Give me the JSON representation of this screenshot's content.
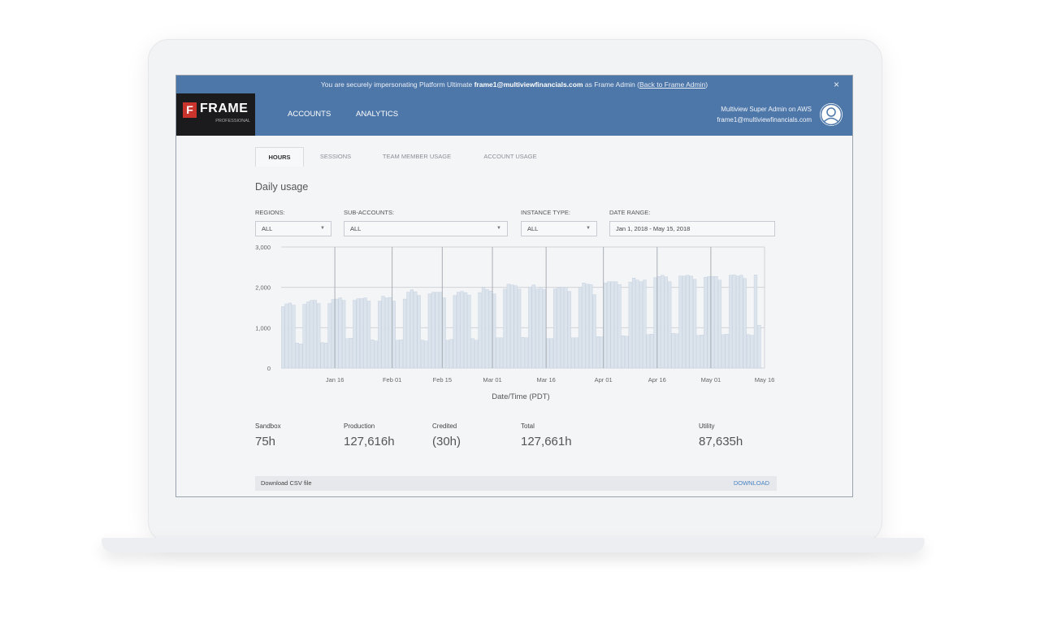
{
  "banner": {
    "prefix": "You are securely impersonating Platform Ultimate ",
    "email": "frame1@multiviewfinancials.com",
    "middle": " as Frame Admin (",
    "link": "Back to Frame Admin",
    "suffix": ")",
    "close_icon": "×"
  },
  "header": {
    "logo_name": "FRAME",
    "logo_letter": "F",
    "logo_sub": "PROFESSIONAL",
    "nav": [
      "ACCOUNTS",
      "ANALYTICS"
    ],
    "user_name": "Multiview Super Admin on AWS",
    "user_email": "frame1@multiviewfinancials.com",
    "avatar_icon": "user-avatar-icon"
  },
  "tabs": [
    "HOURS",
    "SESSIONS",
    "TEAM MEMBER USAGE",
    "ACCOUNT USAGE"
  ],
  "active_tab": "HOURS",
  "title": "Daily usage",
  "filters": {
    "regions": {
      "label": "REGIONS:",
      "value": "ALL"
    },
    "sub_accounts": {
      "label": "SUB-ACCOUNTS:",
      "value": "ALL"
    },
    "instance_type": {
      "label": "INSTANCE TYPE:",
      "value": "ALL"
    },
    "date_range": {
      "label": "DATE RANGE:",
      "value": "Jan 1, 2018 - May 15, 2018"
    }
  },
  "chart_data": {
    "type": "bar",
    "xlabel": "Date/Time (PDT)",
    "ylabel": "",
    "ylim": [
      0,
      3000
    ],
    "yticks": [
      "0",
      "1,000",
      "2,000",
      "3,000"
    ],
    "x_range": [
      "2018-01-01",
      "2018-05-15"
    ],
    "xticks": [
      {
        "label": "Jan 16",
        "date": "2018-01-16"
      },
      {
        "label": "Feb 01",
        "date": "2018-02-01"
      },
      {
        "label": "Feb 15",
        "date": "2018-02-15"
      },
      {
        "label": "Mar 01",
        "date": "2018-03-01"
      },
      {
        "label": "Mar 16",
        "date": "2018-03-16"
      },
      {
        "label": "Apr 01",
        "date": "2018-04-01"
      },
      {
        "label": "Apr 16",
        "date": "2018-04-16"
      },
      {
        "label": "May 01",
        "date": "2018-05-01"
      },
      {
        "label": "May 16",
        "date": "2018-05-16"
      }
    ],
    "grid": true,
    "bar_color": "#dbe3ed",
    "values": [
      1520,
      1590,
      1610,
      1560,
      620,
      600,
      1580,
      1640,
      1680,
      1680,
      1600,
      630,
      620,
      1600,
      1700,
      1710,
      1740,
      1680,
      730,
      740,
      1680,
      1720,
      1720,
      1740,
      1660,
      700,
      670,
      1660,
      1780,
      1740,
      1750,
      1660,
      690,
      700,
      1710,
      1880,
      1940,
      1890,
      1800,
      690,
      670,
      1840,
      1880,
      1880,
      1880,
      1740,
      690,
      710,
      1800,
      1880,
      1900,
      1870,
      1810,
      730,
      690,
      1870,
      1990,
      1950,
      1910,
      1840,
      750,
      750,
      1960,
      2080,
      2060,
      2040,
      1960,
      760,
      750,
      2010,
      2060,
      1960,
      2000,
      1950,
      730,
      730,
      1960,
      1990,
      2010,
      2000,
      1900,
      750,
      750,
      2000,
      2110,
      2080,
      2070,
      1820,
      780,
      770,
      2110,
      2140,
      2140,
      2140,
      2070,
      800,
      790,
      2130,
      2230,
      2180,
      2140,
      2180,
      830,
      840,
      2240,
      2270,
      2300,
      2260,
      2140,
      860,
      850,
      2280,
      2280,
      2300,
      2280,
      2200,
      810,
      820,
      2250,
      2270,
      2270,
      2270,
      2180,
      830,
      840,
      2300,
      2310,
      2280,
      2300,
      2220,
      830,
      810,
      2310,
      1060
    ]
  },
  "stats": [
    {
      "label": "Sandbox",
      "value": "75h"
    },
    {
      "label": "Production",
      "value": "127,616h"
    },
    {
      "label": "Credited",
      "value": "(30h)"
    },
    {
      "label": "Total",
      "value": "127,661h"
    },
    {
      "label": "Utility",
      "value": "87,635h"
    }
  ],
  "download": {
    "label": "Download CSV file",
    "button": "DOWNLOAD"
  }
}
